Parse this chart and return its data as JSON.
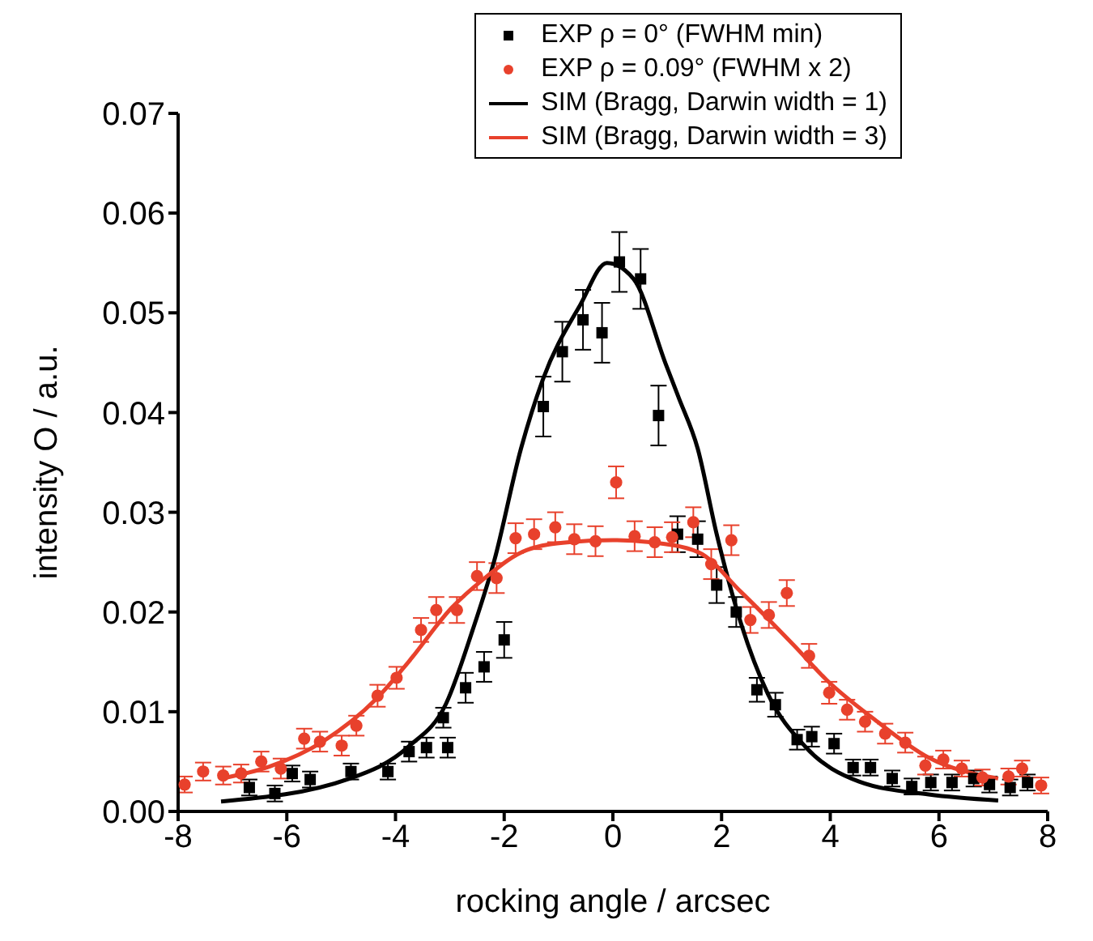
{
  "chart_data": {
    "type": "scatter",
    "xlabel": "rocking angle / arcsec",
    "ylabel": "intensity O / a.u.",
    "xlim": [
      -8,
      8
    ],
    "xticks": [
      -8,
      -6,
      -4,
      -2,
      0,
      2,
      4,
      6,
      8
    ],
    "ylim": [
      0,
      0.07
    ],
    "yticks": [
      {
        "value": 0,
        "label": "0.00"
      },
      {
        "value": 0.01,
        "label": "0.01"
      },
      {
        "value": 0.02,
        "label": "0.02"
      },
      {
        "value": 0.03,
        "label": "0.03"
      },
      {
        "value": 0.04,
        "label": "0.04"
      },
      {
        "value": 0.05,
        "label": "0.05"
      },
      {
        "value": 0.06,
        "label": "0.06"
      },
      {
        "value": 0.07,
        "label": "0.07"
      }
    ],
    "grid": false,
    "legend": "top right",
    "series": [
      {
        "name": "EXP ρ = 0° (FWHM min)",
        "marker": "square",
        "color": "#000000",
        "x": [
          -6.69,
          -6.22,
          -5.9,
          -5.57,
          -4.82,
          -4.14,
          -3.75,
          -3.43,
          -3.04,
          -3.12,
          -2.71,
          -2.37,
          -2.0,
          -1.28,
          -0.93,
          -0.55,
          -0.2,
          0.12,
          0.51,
          0.84,
          1.19,
          1.56,
          1.91,
          2.27,
          2.65,
          2.99,
          3.39,
          3.66,
          4.07,
          4.42,
          4.74,
          5.14,
          5.5,
          5.85,
          6.24,
          6.64,
          6.93,
          7.31,
          7.63
        ],
        "values": [
          0.0024,
          0.0018,
          0.0038,
          0.0032,
          0.004,
          0.004,
          0.006,
          0.0064,
          0.0064,
          0.0094,
          0.0124,
          0.0145,
          0.0172,
          0.0406,
          0.0461,
          0.0493,
          0.048,
          0.0551,
          0.0534,
          0.0397,
          0.0278,
          0.0273,
          0.0227,
          0.02,
          0.0122,
          0.0107,
          0.0072,
          0.0075,
          0.0068,
          0.0044,
          0.0044,
          0.0033,
          0.0025,
          0.0029,
          0.0029,
          0.0033,
          0.0027,
          0.0024,
          0.0029
        ],
        "errors": [
          0.0008,
          0.0008,
          0.0008,
          0.0008,
          0.0008,
          0.0008,
          0.001,
          0.001,
          0.001,
          0.001,
          0.0015,
          0.0015,
          0.0018,
          0.003,
          0.003,
          0.003,
          0.003,
          0.003,
          0.003,
          0.003,
          0.0018,
          0.0018,
          0.0018,
          0.0015,
          0.0012,
          0.0012,
          0.001,
          0.001,
          0.001,
          0.0008,
          0.0008,
          0.0008,
          0.0008,
          0.0008,
          0.0008,
          0.0008,
          0.0008,
          0.0008,
          0.0008
        ]
      },
      {
        "name": "EXP ρ = 0.09° (FWHM x 2)",
        "marker": "circle",
        "color": "#e8412c",
        "x": [
          -7.88,
          -7.54,
          -7.17,
          -6.84,
          -6.47,
          -6.11,
          -5.68,
          -5.39,
          -4.99,
          -4.72,
          -4.33,
          -3.98,
          -3.53,
          -3.25,
          -2.87,
          -2.5,
          -2.14,
          -1.79,
          -1.45,
          -1.06,
          -0.71,
          -0.32,
          0.06,
          0.4,
          0.77,
          1.09,
          1.48,
          1.81,
          2.18,
          2.53,
          2.87,
          3.2,
          3.61,
          3.98,
          4.31,
          4.64,
          5.01,
          5.38,
          5.75,
          6.08,
          6.42,
          6.8,
          7.28,
          7.53,
          7.88
        ],
        "values": [
          0.0027,
          0.004,
          0.0036,
          0.0038,
          0.005,
          0.0043,
          0.0073,
          0.007,
          0.0066,
          0.0086,
          0.0116,
          0.0134,
          0.0182,
          0.0202,
          0.0202,
          0.0236,
          0.0234,
          0.0274,
          0.0278,
          0.0285,
          0.0273,
          0.0271,
          0.033,
          0.0276,
          0.027,
          0.0275,
          0.029,
          0.0248,
          0.0272,
          0.0192,
          0.0197,
          0.0219,
          0.0156,
          0.0119,
          0.0102,
          0.009,
          0.0078,
          0.0069,
          0.0046,
          0.0052,
          0.0043,
          0.0034,
          0.0035,
          0.0043,
          0.0026
        ],
        "errors": [
          0.0008,
          0.0009,
          0.0009,
          0.0009,
          0.001,
          0.001,
          0.001,
          0.001,
          0.001,
          0.001,
          0.0011,
          0.0011,
          0.0012,
          0.0013,
          0.0013,
          0.0014,
          0.0015,
          0.0015,
          0.0015,
          0.0015,
          0.0015,
          0.0015,
          0.0016,
          0.0015,
          0.0015,
          0.0015,
          0.0015,
          0.0015,
          0.0015,
          0.0013,
          0.0013,
          0.0013,
          0.0012,
          0.0011,
          0.001,
          0.001,
          0.001,
          0.001,
          0.0009,
          0.0009,
          0.0008,
          0.0008,
          0.0008,
          0.0008,
          0.0008
        ]
      },
      {
        "name": "SIM (Bragg, Darwin width = 1)",
        "type": "line",
        "marker": "none",
        "color": "#000000",
        "x": [
          -7.21,
          -4.84,
          -3.76,
          -3.07,
          -2.58,
          -2.18,
          -1.69,
          -1.29,
          -0.6,
          -0.11,
          0.38,
          0.97,
          1.21,
          1.56,
          1.91,
          2.36,
          2.85,
          3.54,
          4.53,
          5.81,
          7.09
        ],
        "values": [
          0.001,
          0.0033,
          0.0065,
          0.0108,
          0.0182,
          0.0252,
          0.0364,
          0.0433,
          0.0508,
          0.055,
          0.0534,
          0.0449,
          0.0415,
          0.0364,
          0.0278,
          0.0188,
          0.0118,
          0.0065,
          0.003,
          0.0017,
          0.0011
        ]
      },
      {
        "name": "SIM (Bragg, Darwin width = 3)",
        "type": "line",
        "marker": "none",
        "color": "#e8412c",
        "x": [
          -7.21,
          -6.32,
          -5.34,
          -4.35,
          -3.76,
          -2.97,
          -2.38,
          -1.59,
          -0.8,
          0,
          0.68,
          1.57,
          2.36,
          3.34,
          3.93,
          4.82,
          5.81,
          7.09
        ],
        "values": [
          0.0033,
          0.0045,
          0.007,
          0.0113,
          0.015,
          0.0204,
          0.0233,
          0.0262,
          0.027,
          0.0272,
          0.027,
          0.026,
          0.022,
          0.0166,
          0.0132,
          0.0092,
          0.0054,
          0.0033
        ]
      }
    ]
  }
}
